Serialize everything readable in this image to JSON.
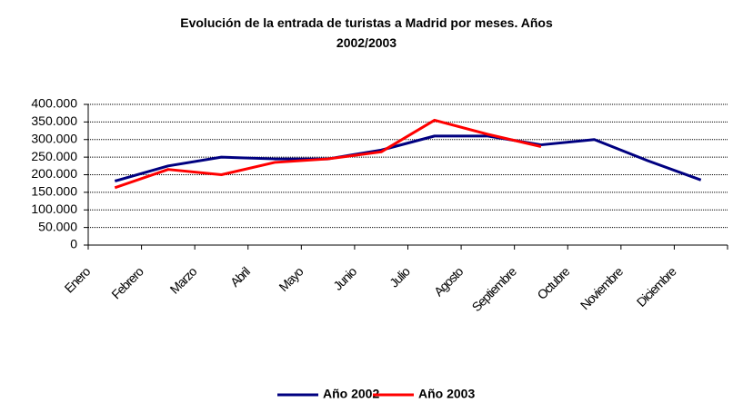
{
  "chart_data": {
    "type": "line",
    "title": "Evolución de la entrada de turistas a Madrid por meses. Años 2002/2003",
    "categories": [
      "Enero",
      "Febrero",
      "Marzo",
      "Abril",
      "Mayo",
      "Junio",
      "Julio",
      "Agosto",
      "Septiembre",
      "Octubre",
      "Noviembre",
      "Diciembre"
    ],
    "series": [
      {
        "name": "Año 2002",
        "color": "#000080",
        "values": [
          182000,
          225000,
          250000,
          245000,
          245000,
          270000,
          310000,
          310000,
          285000,
          300000,
          240000,
          185000
        ]
      },
      {
        "name": "Año 2003",
        "color": "#ff0000",
        "values": [
          163000,
          215000,
          200000,
          235000,
          245000,
          265000,
          355000,
          315000,
          280000,
          null,
          null,
          null
        ]
      }
    ],
    "ylim": [
      0,
      400000
    ],
    "yticks": [
      0,
      {
        "value": 50000,
        "label": "50.000"
      },
      {
        "value": 100000,
        "label": "100.000"
      },
      {
        "value": 150000,
        "label": "150.000"
      },
      {
        "value": 200000,
        "label": "200.000"
      },
      {
        "value": 250000,
        "label": "250.000"
      },
      {
        "value": 300000,
        "label": "300.000"
      },
      {
        "value": 350000,
        "label": "350.000"
      },
      {
        "value": 400000,
        "label": "400.000"
      }
    ],
    "grid": true,
    "legend": "bottom"
  }
}
